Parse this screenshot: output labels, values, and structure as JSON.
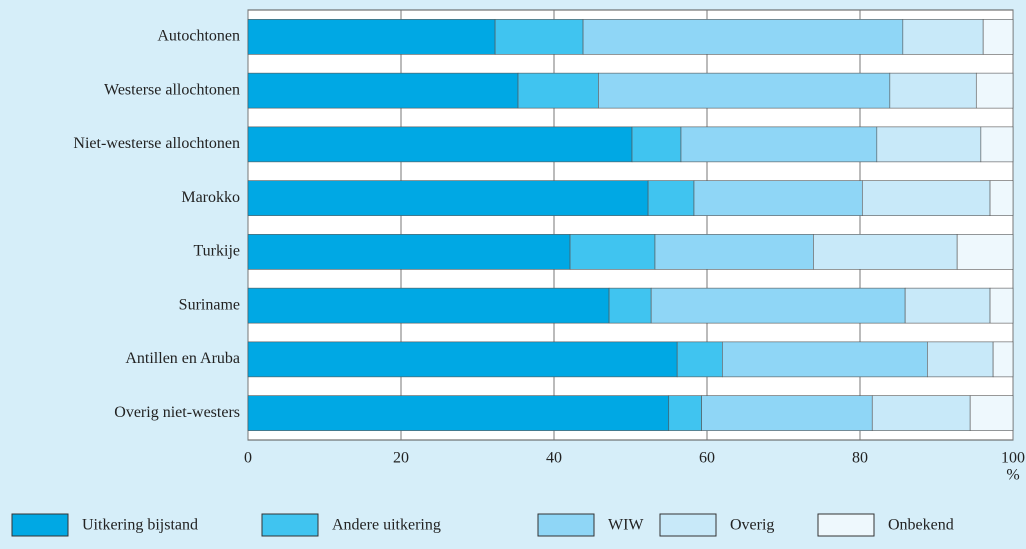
{
  "chart_data": {
    "type": "stacked-barh",
    "categories": [
      "Autochtonen",
      "Westerse allochtonen",
      "Niet-westerse allochtonen",
      "Marokko",
      "Turkije",
      "Suriname",
      "Antillen en Aruba",
      "Overig niet-westers"
    ],
    "series": [
      {
        "name": "Uitkering bijstand",
        "color": "#00a8e4",
        "values": [
          32.3,
          35.3,
          50.2,
          52.3,
          42.1,
          47.2,
          56.1,
          55.0
        ]
      },
      {
        "name": "Andere uitkering",
        "color": "#40c4f0",
        "values": [
          11.5,
          10.5,
          6.4,
          6.0,
          11.1,
          5.5,
          5.9,
          4.3
        ]
      },
      {
        "name": "WIW",
        "color": "#8fd6f6",
        "values": [
          41.8,
          38.1,
          25.6,
          22.0,
          20.7,
          33.2,
          26.8,
          22.3
        ]
      },
      {
        "name": "Overig",
        "color": "#c8e9f9",
        "values": [
          10.5,
          11.3,
          13.6,
          16.7,
          18.8,
          11.1,
          8.6,
          12.8
        ]
      },
      {
        "name": "Onbekend",
        "color": "#eef8fd",
        "values": [
          3.9,
          4.8,
          4.2,
          3.0,
          7.3,
          3.0,
          2.6,
          5.6
        ]
      }
    ],
    "x_label": "%",
    "xlim": [
      0,
      100
    ],
    "xticks": [
      0,
      20,
      40,
      60,
      80,
      100
    ],
    "grid": true
  }
}
